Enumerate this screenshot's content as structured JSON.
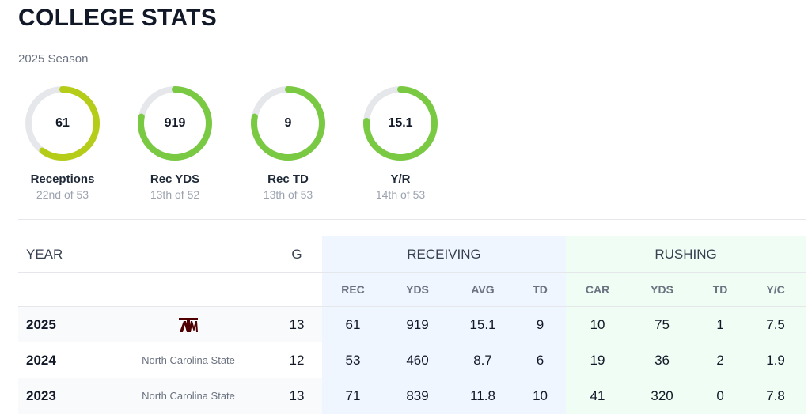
{
  "header": {
    "title": "COLLEGE STATS",
    "season": "2025 Season"
  },
  "rings": [
    {
      "value": "61",
      "label": "Receptions",
      "rank": "22nd of 53",
      "fill": 0.6,
      "color": "#b5cc18"
    },
    {
      "value": "919",
      "label": "Rec YDS",
      "rank": "13th of 52",
      "fill": 0.78,
      "color": "#7ac943"
    },
    {
      "value": "9",
      "label": "Rec TD",
      "rank": "13th of 53",
      "fill": 0.78,
      "color": "#7ac943"
    },
    {
      "value": "15.1",
      "label": "Y/R",
      "rank": "14th of 53",
      "fill": 0.76,
      "color": "#7ac943"
    }
  ],
  "table": {
    "groups": {
      "year": "YEAR",
      "games": "G",
      "receiving": "RECEIVING",
      "rushing": "RUSHING"
    },
    "subheaders": {
      "rec": "REC",
      "yds": "YDS",
      "avg": "AVG",
      "td": "TD",
      "car": "CAR",
      "rush_yds": "YDS",
      "rush_td": "TD",
      "yc": "Y/C"
    },
    "rows": [
      {
        "year": "2025",
        "school": "",
        "logo": "texas-am-logo",
        "g": "13",
        "rec": "61",
        "yds": "919",
        "avg": "15.1",
        "td": "9",
        "car": "10",
        "rush_yds": "75",
        "rush_td": "1",
        "yc": "7.5"
      },
      {
        "year": "2024",
        "school": "North Carolina State",
        "g": "12",
        "rec": "53",
        "yds": "460",
        "avg": "8.7",
        "td": "6",
        "car": "19",
        "rush_yds": "36",
        "rush_td": "2",
        "yc": "1.9"
      },
      {
        "year": "2023",
        "school": "North Carolina State",
        "g": "13",
        "rec": "71",
        "yds": "839",
        "avg": "11.8",
        "td": "10",
        "car": "41",
        "rush_yds": "320",
        "rush_td": "0",
        "yc": "7.8"
      }
    ]
  },
  "colors": {
    "accent_lime": "#b5cc18",
    "accent_green": "#7ac943",
    "ring_track": "#e5e7eb",
    "aggie_maroon": "#500000"
  }
}
